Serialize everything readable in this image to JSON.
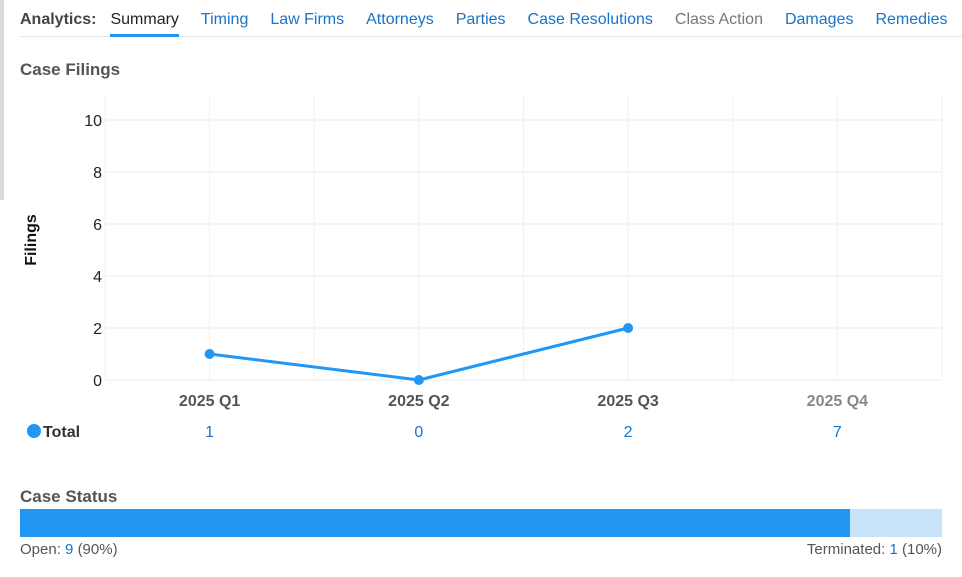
{
  "tabs_label": "Analytics:",
  "tabs": [
    {
      "label": "Summary",
      "state": "active"
    },
    {
      "label": "Timing",
      "state": "link"
    },
    {
      "label": "Law Firms",
      "state": "link"
    },
    {
      "label": "Attorneys",
      "state": "link"
    },
    {
      "label": "Parties",
      "state": "link"
    },
    {
      "label": "Case Resolutions",
      "state": "link"
    },
    {
      "label": "Class Action",
      "state": "disabled"
    },
    {
      "label": "Damages",
      "state": "link"
    },
    {
      "label": "Remedies",
      "state": "link"
    }
  ],
  "filings": {
    "title": "Case Filings",
    "total_label": "Total",
    "totals": [
      "1",
      "0",
      "2",
      "7"
    ]
  },
  "chart_data": {
    "type": "line",
    "categories": [
      "2025 Q1",
      "2025 Q2",
      "2025 Q3",
      "2025 Q4"
    ],
    "series": [
      {
        "name": "Total",
        "values": [
          1,
          0,
          2,
          null
        ]
      }
    ],
    "ylabel": "Filings",
    "ylim": [
      0,
      10
    ],
    "yticks": [
      0,
      2,
      4,
      6,
      8,
      10
    ],
    "grid": true,
    "color": "#2196f3"
  },
  "case_status": {
    "title": "Case Status",
    "open_label": "Open:",
    "open_count": "9",
    "open_pct": "(90%)",
    "terminated_label": "Terminated:",
    "terminated_count": "1",
    "terminated_pct": "(10%)",
    "open_fraction": 0.9
  }
}
